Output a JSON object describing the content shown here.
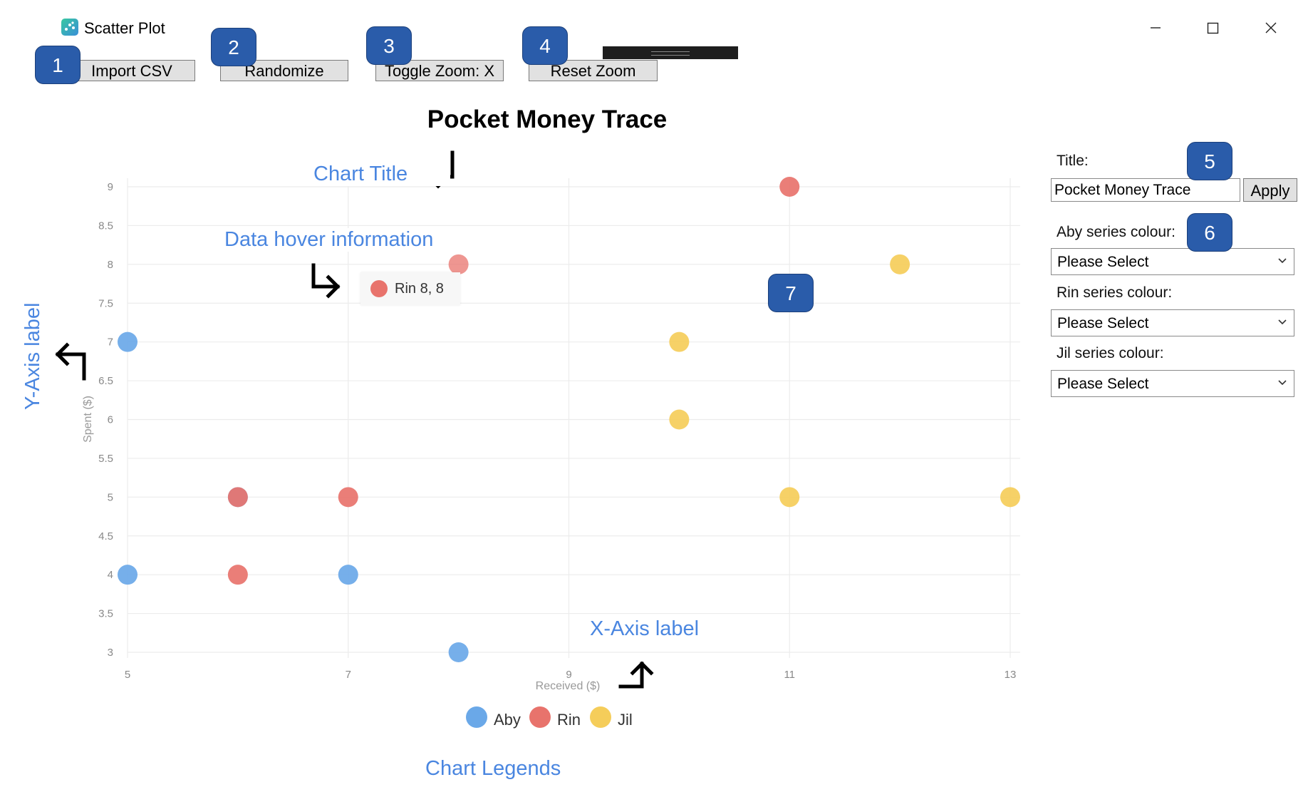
{
  "window": {
    "title": "Scatter Plot",
    "icon": "scatter-app-icon",
    "controls": [
      "minimize-icon",
      "maximize-icon",
      "close-icon"
    ]
  },
  "toolbar": {
    "import_label": "Import CSV",
    "randomize_label": "Randomize",
    "toggle_zoom_label": "Toggle Zoom: X",
    "reset_zoom_label": "Reset Zoom"
  },
  "badges": [
    "1",
    "2",
    "3",
    "4",
    "5",
    "6",
    "7"
  ],
  "annotations": {
    "chart_title": "Chart Title",
    "hover_info": "Data hover information",
    "y_axis": "Y-Axis label",
    "x_axis": "X-Axis label",
    "legends": "Chart Legends"
  },
  "tooltip": {
    "text": "Rin  8, 8",
    "series": "Rin"
  },
  "panel": {
    "title_label": "Title:",
    "title_value": "Pocket Money Trace",
    "apply_label": "Apply",
    "aby_label": "Aby series colour:",
    "aby_value": "Please Select",
    "rin_label": "Rin series colour:",
    "rin_value": "Please Select",
    "jil_label": "Jil series colour:",
    "jil_value": "Please Select"
  },
  "colors": {
    "aby": "#6aa8e8",
    "rin": "#e8736c",
    "jil": "#f5cd5a",
    "annotation": "#4a86e0",
    "badge": "#2a5caa"
  },
  "chart_data": {
    "type": "scatter",
    "title": "Pocket Money Trace",
    "xlabel": "Received ($)",
    "ylabel": "Spent ($)",
    "xlim": [
      5,
      13
    ],
    "ylim": [
      3,
      9
    ],
    "xticks": [
      "5",
      "7",
      "9",
      "11",
      "13"
    ],
    "yticks": [
      "3",
      "3.5",
      "4",
      "4.5",
      "5",
      "5.5",
      "6",
      "6.5",
      "7",
      "7.5",
      "8",
      "8.5",
      "9"
    ],
    "grid": true,
    "legend": "bottom-center",
    "series": [
      {
        "name": "Aby",
        "points": [
          [
            5,
            7
          ],
          [
            5,
            4
          ],
          [
            6,
            5
          ],
          [
            7,
            4
          ],
          [
            8,
            3
          ]
        ]
      },
      {
        "name": "Rin",
        "points": [
          [
            6,
            5
          ],
          [
            6,
            4
          ],
          [
            7,
            5
          ],
          [
            8,
            8
          ],
          [
            11,
            9
          ]
        ]
      },
      {
        "name": "Jil",
        "points": [
          [
            10,
            7
          ],
          [
            10,
            6
          ],
          [
            11,
            5
          ],
          [
            12,
            8
          ],
          [
            13,
            5
          ]
        ]
      }
    ]
  }
}
